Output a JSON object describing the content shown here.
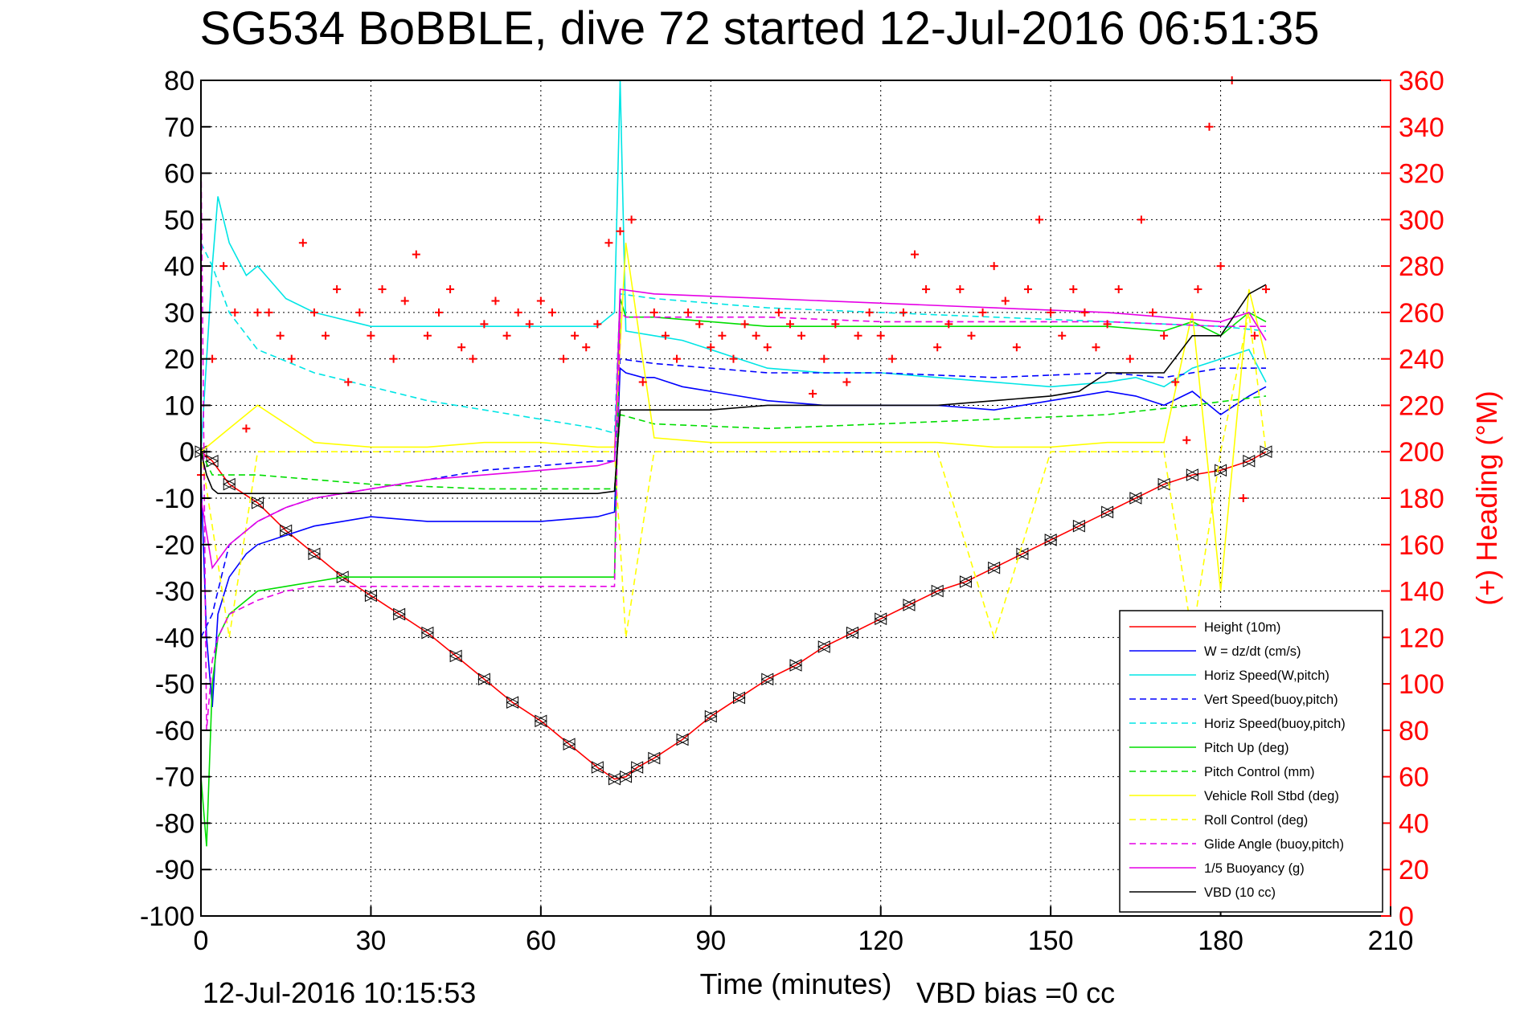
{
  "chart_data": {
    "type": "line",
    "title": "SG534 BoBBLE, dive 72 started 12-Jul-2016 06:51:35",
    "xlabel": "Time (minutes)",
    "ylabel_right": "(+) Heading (°M)",
    "footer_date": "12-Jul-2016 10:15:53",
    "footer_bias": "VBD bias =0 cc",
    "xlim": [
      0,
      210
    ],
    "ylim": [
      -100,
      80
    ],
    "ylim_right": [
      0,
      360
    ],
    "xticks": [
      "0",
      "30",
      "60",
      "90",
      "120",
      "150",
      "180",
      "210"
    ],
    "yticks": [
      "80",
      "70",
      "60",
      "50",
      "40",
      "30",
      "20",
      "10",
      "0",
      "-10",
      "-20",
      "-30",
      "-40",
      "-50",
      "-60",
      "-70",
      "-80",
      "-90",
      "-100"
    ],
    "yticks_right": [
      "360",
      "340",
      "320",
      "300",
      "280",
      "260",
      "240",
      "220",
      "200",
      "180",
      "160",
      "140",
      "120",
      "100",
      "80",
      "60",
      "40",
      "20",
      "0"
    ],
    "grid": true,
    "legend_position": "bottom-right",
    "colors": {
      "height": "#ff0000",
      "w": "#0000ff",
      "horiz_speed": "#00e5e5",
      "pitch": "#00dd00",
      "roll": "#ffff00",
      "glide": "#e600e6",
      "vbd": "#000000",
      "heading": "#ff0000"
    },
    "series": [
      {
        "name": "Height (10m)",
        "color": "#ff0000",
        "dash": "solid",
        "markers": "triangle",
        "x": [
          0,
          2,
          5,
          10,
          15,
          20,
          25,
          30,
          35,
          40,
          45,
          50,
          55,
          60,
          65,
          70,
          73,
          75,
          77,
          80,
          85,
          90,
          95,
          100,
          105,
          110,
          115,
          120,
          125,
          130,
          135,
          140,
          145,
          150,
          155,
          160,
          165,
          170,
          175,
          180,
          185,
          188
        ],
        "y": [
          0,
          -2,
          -7,
          -11,
          -17,
          -22,
          -27,
          -31,
          -35,
          -39,
          -44,
          -49,
          -54,
          -58,
          -63,
          -68,
          -70.5,
          -70,
          -68,
          -66,
          -62,
          -57,
          -53,
          -49,
          -46,
          -42,
          -39,
          -36,
          -33,
          -30,
          -28,
          -25,
          -22,
          -19,
          -16,
          -13,
          -10,
          -7,
          -5,
          -4,
          -2,
          0
        ]
      },
      {
        "name": "W = dz/dt (cm/s)",
        "color": "#0000ff",
        "dash": "solid",
        "x": [
          0,
          1,
          2,
          3,
          5,
          8,
          10,
          15,
          20,
          25,
          30,
          40,
          50,
          60,
          70,
          73,
          74,
          75,
          78,
          80,
          85,
          90,
          100,
          110,
          120,
          130,
          140,
          150,
          155,
          160,
          165,
          170,
          175,
          180,
          185,
          188
        ],
        "y": [
          -5,
          -40,
          -55,
          -35,
          -27,
          -22,
          -20,
          -18,
          -16,
          -15,
          -14,
          -15,
          -15,
          -15,
          -14,
          -13,
          18,
          17,
          16,
          16,
          14,
          13,
          11,
          10,
          10,
          10,
          9,
          11,
          12,
          13,
          12,
          10,
          13,
          8,
          12,
          14
        ]
      },
      {
        "name": "Horiz Speed(W,pitch)",
        "color": "#00e5e5",
        "dash": "solid",
        "x": [
          0,
          2,
          3,
          5,
          8,
          10,
          15,
          20,
          30,
          40,
          50,
          60,
          70,
          73,
          74,
          75,
          80,
          85,
          90,
          95,
          100,
          110,
          120,
          130,
          140,
          150,
          160,
          165,
          170,
          175,
          180,
          185,
          188
        ],
        "y": [
          0,
          40,
          55,
          45,
          38,
          40,
          33,
          30,
          27,
          27,
          27,
          27,
          27,
          30,
          80,
          26,
          25,
          24,
          22,
          20,
          18,
          17,
          17,
          16,
          15,
          14,
          15,
          16,
          14,
          18,
          20,
          22,
          15
        ]
      },
      {
        "name": "Vert Speed(buoy,pitch)",
        "color": "#0000ff",
        "dash": "dashed",
        "x": [
          0,
          2,
          5,
          10,
          15,
          20,
          30,
          40,
          50,
          60,
          70,
          73,
          74,
          80,
          90,
          100,
          120,
          140,
          160,
          170,
          180,
          188
        ],
        "y": [
          -40,
          -35,
          -20,
          -15,
          -12,
          -10,
          -8,
          -6,
          -4,
          -3,
          -2,
          -2,
          20,
          19,
          18,
          17,
          17,
          16,
          17,
          16,
          18,
          18
        ]
      },
      {
        "name": "Horiz Speed(buoy,pitch)",
        "color": "#00e5e5",
        "dash": "dashed",
        "x": [
          0,
          2,
          5,
          10,
          20,
          30,
          40,
          50,
          60,
          70,
          73,
          74,
          80,
          100,
          120,
          140,
          160,
          180,
          188
        ],
        "y": [
          45,
          40,
          30,
          22,
          17,
          14,
          11,
          9,
          7,
          5,
          4,
          34,
          33,
          31,
          30,
          29,
          28,
          27,
          26
        ]
      },
      {
        "name": "Pitch Up (deg)",
        "color": "#00dd00",
        "dash": "solid",
        "x": [
          0,
          1,
          2,
          3,
          5,
          8,
          10,
          15,
          20,
          25,
          30,
          40,
          50,
          60,
          70,
          73,
          74,
          75,
          80,
          90,
          100,
          120,
          140,
          160,
          170,
          175,
          180,
          185,
          188
        ],
        "y": [
          -70,
          -85,
          -50,
          -40,
          -35,
          -32,
          -30,
          -29,
          -28,
          -27,
          -27,
          -27,
          -27,
          -27,
          -27,
          -27,
          33,
          29,
          29,
          28,
          27,
          27,
          27,
          27,
          26,
          28,
          25,
          30,
          28
        ]
      },
      {
        "name": "Pitch Control (mm)",
        "color": "#00dd00",
        "dash": "dashed",
        "x": [
          0,
          2,
          5,
          10,
          20,
          30,
          50,
          73,
          74,
          80,
          100,
          120,
          140,
          160,
          175,
          188
        ],
        "y": [
          0,
          -5,
          -5,
          -5,
          -6,
          -7,
          -8,
          -8,
          8,
          6,
          5,
          6,
          7,
          8,
          10,
          12
        ]
      },
      {
        "name": "Vehicle Roll Stbd (deg)",
        "color": "#ffff00",
        "dash": "solid",
        "x": [
          0,
          5,
          10,
          20,
          30,
          40,
          50,
          60,
          70,
          73,
          75,
          80,
          90,
          100,
          110,
          120,
          130,
          140,
          150,
          160,
          170,
          175,
          180,
          185,
          188
        ],
        "y": [
          0,
          5,
          10,
          2,
          1,
          1,
          2,
          2,
          1,
          1,
          45,
          3,
          2,
          2,
          2,
          2,
          2,
          1,
          1,
          2,
          2,
          30,
          -30,
          35,
          20
        ]
      },
      {
        "name": "Roll Control (deg)",
        "color": "#ffff00",
        "dash": "dashed",
        "x": [
          0,
          5,
          10,
          20,
          30,
          40,
          50,
          60,
          70,
          73,
          75,
          80,
          90,
          100,
          110,
          120,
          130,
          140,
          150,
          160,
          170,
          175,
          180,
          185,
          188
        ],
        "y": [
          0,
          -40,
          0,
          0,
          0,
          0,
          0,
          0,
          0,
          0,
          -40,
          0,
          0,
          0,
          0,
          0,
          0,
          -40,
          0,
          0,
          0,
          -40,
          0,
          30,
          0
        ]
      },
      {
        "name": "Glide Angle (buoy,pitch)",
        "color": "#e600e6",
        "dash": "dashed",
        "x": [
          0,
          1,
          2,
          3,
          5,
          10,
          15,
          20,
          30,
          40,
          50,
          60,
          70,
          73,
          74,
          75,
          80,
          100,
          120,
          140,
          160,
          180,
          188
        ],
        "y": [
          65,
          -60,
          -45,
          -40,
          -35,
          -32,
          -30,
          -29,
          -29,
          -29,
          -29,
          -29,
          -29,
          -29,
          30,
          29,
          29,
          29,
          28,
          28,
          28,
          27,
          27
        ]
      },
      {
        "name": "1/5 Buoyancy (g)",
        "color": "#e600e6",
        "dash": "solid",
        "x": [
          0,
          2,
          5,
          10,
          15,
          20,
          30,
          40,
          50,
          60,
          70,
          73,
          74,
          80,
          100,
          120,
          140,
          160,
          180,
          185,
          188
        ],
        "y": [
          -10,
          -25,
          -20,
          -15,
          -12,
          -10,
          -8,
          -6,
          -5,
          -4,
          -3,
          -2,
          35,
          34,
          33,
          32,
          31,
          30,
          28,
          30,
          24
        ]
      },
      {
        "name": "VBD (10 cc)",
        "color": "#000000",
        "dash": "solid",
        "x": [
          0,
          1,
          2,
          3,
          10,
          20,
          30,
          40,
          50,
          60,
          70,
          73,
          74,
          80,
          90,
          100,
          110,
          120,
          130,
          140,
          150,
          155,
          160,
          165,
          170,
          175,
          180,
          185,
          188
        ],
        "y": [
          0,
          -5,
          -8,
          -9,
          -9,
          -9,
          -9,
          -9,
          -9,
          -9,
          -9,
          -8.5,
          9,
          9,
          9,
          10,
          10,
          10,
          10,
          11,
          12,
          13,
          17,
          17,
          17,
          25,
          25,
          34,
          36
        ]
      },
      {
        "name": "heading",
        "color": "#ff0000",
        "axis": "right",
        "markers": "plus",
        "x": [
          0,
          2,
          4,
          6,
          8,
          10,
          12,
          14,
          16,
          18,
          20,
          22,
          24,
          26,
          28,
          30,
          32,
          34,
          36,
          38,
          40,
          42,
          44,
          46,
          48,
          50,
          52,
          54,
          56,
          58,
          60,
          62,
          64,
          66,
          68,
          70,
          72,
          74,
          76,
          78,
          80,
          82,
          84,
          86,
          88,
          90,
          92,
          94,
          96,
          98,
          100,
          102,
          104,
          106,
          108,
          110,
          112,
          114,
          116,
          118,
          120,
          122,
          124,
          126,
          128,
          130,
          132,
          134,
          136,
          138,
          140,
          142,
          144,
          146,
          148,
          150,
          152,
          154,
          156,
          158,
          160,
          162,
          164,
          166,
          168,
          170,
          172,
          174,
          176,
          178,
          180,
          182,
          184,
          186,
          188
        ],
        "y": [
          190,
          240,
          280,
          260,
          210,
          260,
          260,
          250,
          240,
          290,
          260,
          250,
          270,
          230,
          260,
          250,
          270,
          240,
          265,
          285,
          250,
          260,
          270,
          245,
          240,
          255,
          265,
          250,
          260,
          255,
          265,
          260,
          240,
          250,
          245,
          255,
          290,
          295,
          300,
          230,
          260,
          250,
          240,
          260,
          255,
          245,
          250,
          240,
          255,
          250,
          245,
          260,
          255,
          250,
          225,
          240,
          255,
          230,
          250,
          260,
          250,
          240,
          260,
          285,
          270,
          245,
          255,
          270,
          250,
          260,
          280,
          265,
          245,
          270,
          300,
          260,
          250,
          270,
          260,
          245,
          255,
          270,
          240,
          300,
          260,
          250,
          230,
          205,
          270,
          340,
          280,
          360,
          180,
          250,
          270
        ]
      }
    ]
  }
}
